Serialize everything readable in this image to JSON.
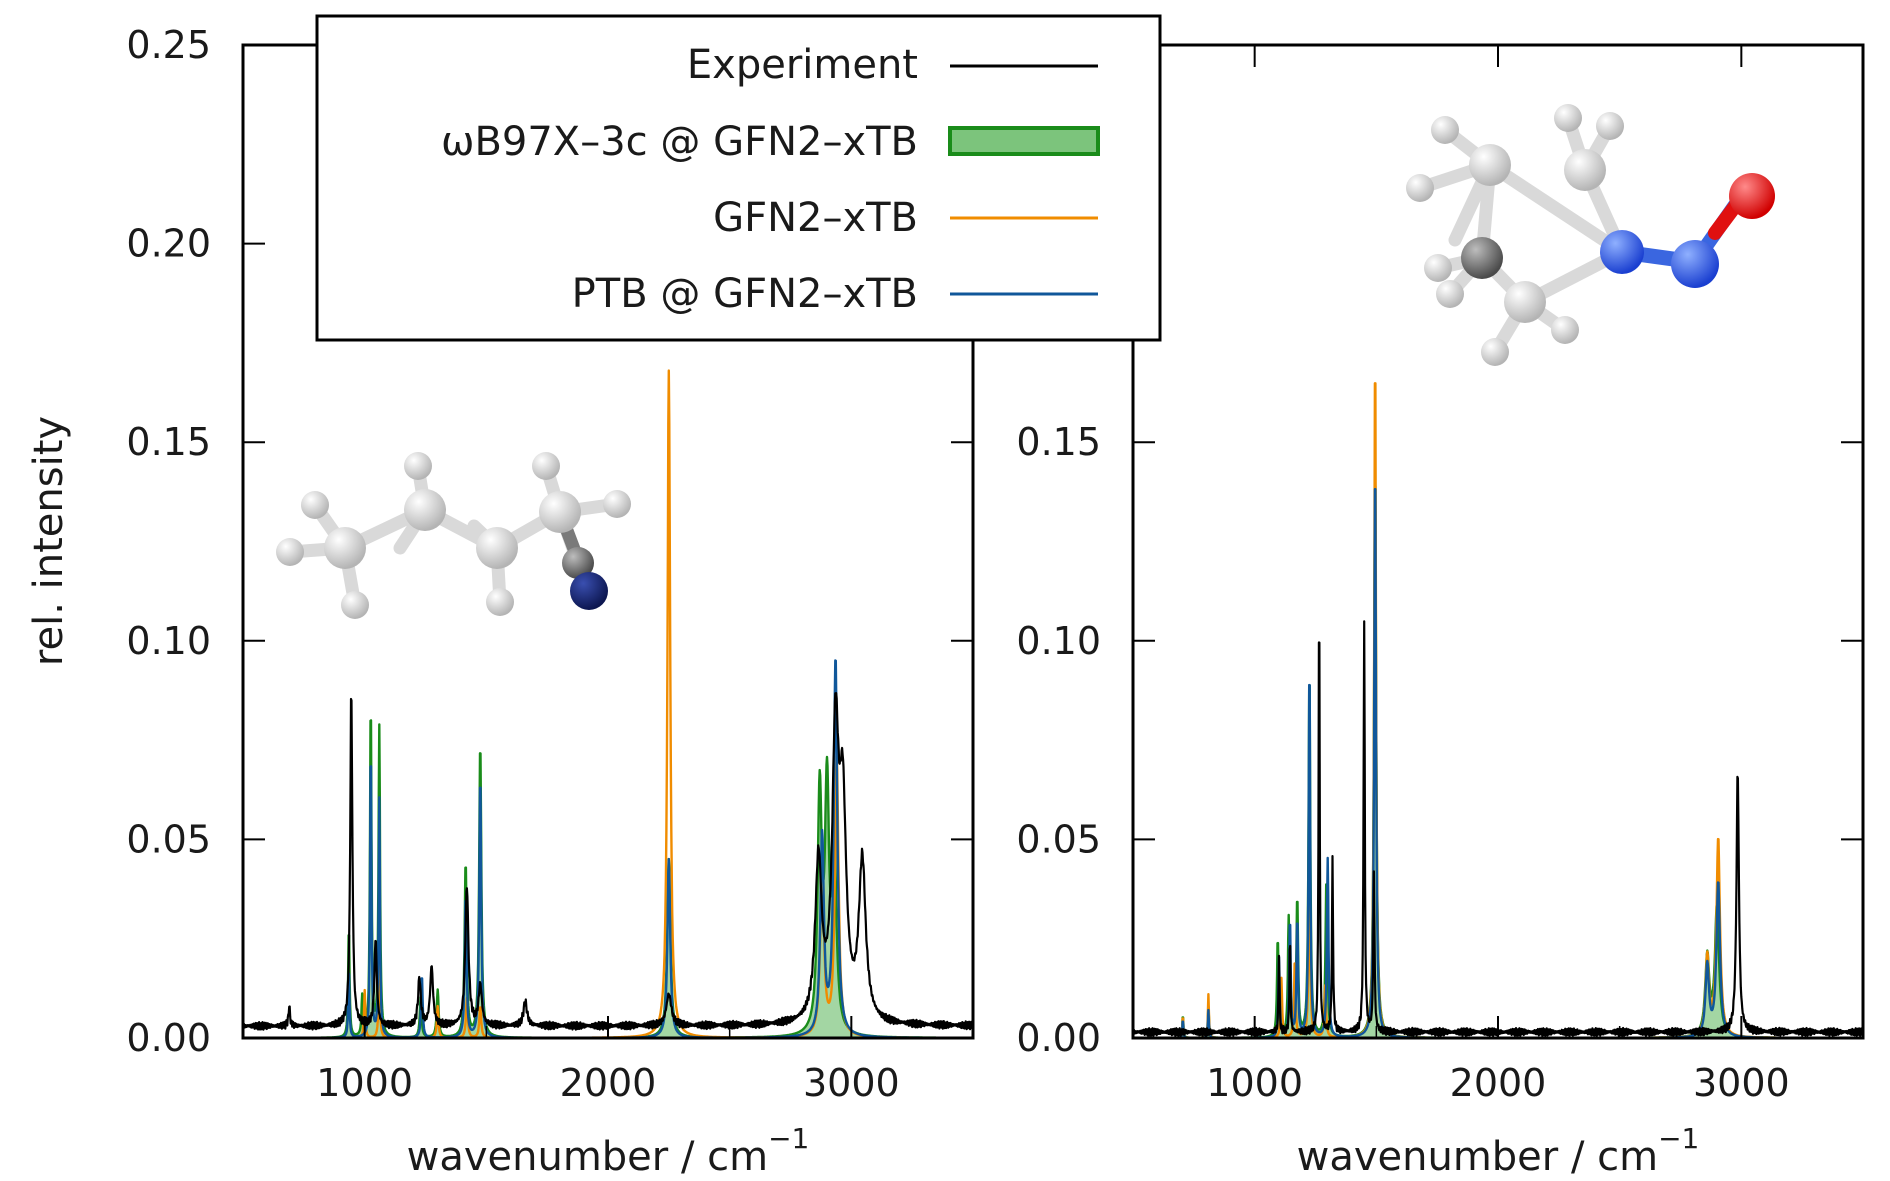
{
  "legend": [
    {
      "label": "Experiment",
      "style": "line",
      "color": "#000000"
    },
    {
      "label": "ωB97X–3c @  GFN2–xTB",
      "style": "fill",
      "color": "#1a8c1a",
      "fill": "#7cc47c"
    },
    {
      "label": "GFN2–xTB",
      "style": "line",
      "color": "#f08c00"
    },
    {
      "label": "PTB @  GFN2–xTB",
      "style": "line",
      "color": "#10579a"
    }
  ],
  "chart_data": [
    {
      "type": "line",
      "molecule": "valeronitrile",
      "ylabel": "rel. intensity",
      "xlabel": "wavenumber / cm",
      "xlabel_sup": "−1",
      "xlim": [
        500,
        3500
      ],
      "ylim": [
        0,
        0.25
      ],
      "xticks": [
        1000,
        2000,
        3000
      ],
      "xtick_labels": [
        "1000",
        "2000",
        "3000"
      ],
      "yticks": [
        0,
        0.05,
        0.1,
        0.15,
        0.2,
        0.25
      ],
      "ytick_labels": [
        "0.00",
        "0.05",
        "0.10",
        "0.15",
        "0.20",
        "0.25"
      ],
      "series": [
        {
          "name": "Experiment",
          "color": "#000000",
          "width": 0.011,
          "baseline": 0.003,
          "peaks": [
            [
              690,
              0.005
            ],
            [
              945,
              0.085
            ],
            [
              1045,
              0.022
            ],
            [
              1225,
              0.012
            ],
            [
              1275,
              0.015
            ],
            [
              1420,
              0.035
            ],
            [
              1475,
              0.01
            ],
            [
              1660,
              0.006
            ],
            [
              2250,
              0.008
            ],
            [
              2865,
              0.04
            ],
            [
              2935,
              0.07
            ],
            [
              2965,
              0.05
            ],
            [
              3045,
              0.04
            ]
          ]
        },
        {
          "name": "ωB97X–3c @  GFN2–xTB",
          "color": "#1a8c1a",
          "fill": "#7cc47c",
          "width": 0.007,
          "baseline": 0,
          "peaks": [
            [
              935,
              0.028
            ],
            [
              990,
              0.01
            ],
            [
              1025,
              0.085
            ],
            [
              1060,
              0.078
            ],
            [
              1230,
              0.01
            ],
            [
              1300,
              0.012
            ],
            [
              1415,
              0.044
            ],
            [
              1475,
              0.074
            ],
            [
              2250,
              0.045
            ],
            [
              2870,
              0.06
            ],
            [
              2900,
              0.06
            ],
            [
              2930,
              0.045
            ]
          ]
        },
        {
          "name": "GFN2–xTB",
          "color": "#f08c00",
          "width": 0.006,
          "baseline": 0,
          "peaks": [
            [
              1000,
              0.012
            ],
            [
              1060,
              0.02
            ],
            [
              1300,
              0.008
            ],
            [
              1420,
              0.01
            ],
            [
              1475,
              0.008
            ],
            [
              2250,
              0.168
            ],
            [
              2880,
              0.045
            ],
            [
              2940,
              0.07
            ]
          ]
        },
        {
          "name": "PTB @  GFN2–xTB",
          "color": "#10579a",
          "width": 0.006,
          "baseline": 0,
          "peaks": [
            [
              935,
              0.018
            ],
            [
              1025,
              0.075
            ],
            [
              1060,
              0.06
            ],
            [
              1235,
              0.016
            ],
            [
              1415,
              0.036
            ],
            [
              1475,
              0.066
            ],
            [
              2250,
              0.045
            ],
            [
              2880,
              0.05
            ],
            [
              2935,
              0.095
            ]
          ]
        }
      ]
    },
    {
      "type": "line",
      "molecule": "N-nitrosopyrrolidine",
      "ylabel": "",
      "xlabel": "wavenumber / cm",
      "xlabel_sup": "−1",
      "xlim": [
        500,
        3500
      ],
      "ylim": [
        0,
        0.25
      ],
      "xticks": [
        1000,
        2000,
        3000
      ],
      "xtick_labels": [
        "1000",
        "2000",
        "3000"
      ],
      "yticks": [
        0,
        0.05,
        0.1,
        0.15
      ],
      "ytick_labels": [
        "0.00",
        "0.05",
        "0.10",
        "0.15"
      ],
      "series": [
        {
          "name": "Experiment",
          "color": "#000000",
          "width": 0.004,
          "baseline": 0.0015,
          "peaks": [
            [
              1100,
              0.02
            ],
            [
              1145,
              0.025
            ],
            [
              1265,
              0.113
            ],
            [
              1320,
              0.043
            ],
            [
              1450,
              0.104
            ],
            [
              1490,
              0.04
            ],
            [
              2985,
              0.066
            ]
          ]
        },
        {
          "name": "ωB97X–3c @  GFN2–xTB",
          "color": "#1a8c1a",
          "fill": "#7cc47c",
          "width": 0.007,
          "baseline": 0,
          "peaks": [
            [
              705,
              0.006
            ],
            [
              810,
              0.008
            ],
            [
              1095,
              0.025
            ],
            [
              1140,
              0.03
            ],
            [
              1175,
              0.035
            ],
            [
              1225,
              0.093
            ],
            [
              1295,
              0.04
            ],
            [
              1495,
              0.144
            ],
            [
              2860,
              0.02
            ],
            [
              2900,
              0.033
            ]
          ]
        },
        {
          "name": "GFN2–xTB",
          "color": "#f08c00",
          "width": 0.006,
          "baseline": 0,
          "peaks": [
            [
              705,
              0.006
            ],
            [
              810,
              0.011
            ],
            [
              1110,
              0.015
            ],
            [
              1165,
              0.02
            ],
            [
              1225,
              0.048
            ],
            [
              1290,
              0.013
            ],
            [
              1495,
              0.173
            ],
            [
              2860,
              0.02
            ],
            [
              2905,
              0.05
            ]
          ]
        },
        {
          "name": "PTB @  GFN2–xTB",
          "color": "#10579a",
          "width": 0.006,
          "baseline": 0,
          "peaks": [
            [
              705,
              0.005
            ],
            [
              810,
              0.007
            ],
            [
              1100,
              0.02
            ],
            [
              1145,
              0.03
            ],
            [
              1175,
              0.03
            ],
            [
              1225,
              0.095
            ],
            [
              1300,
              0.045
            ],
            [
              1495,
              0.145
            ],
            [
              2860,
              0.018
            ],
            [
              2905,
              0.039
            ]
          ]
        }
      ]
    }
  ]
}
